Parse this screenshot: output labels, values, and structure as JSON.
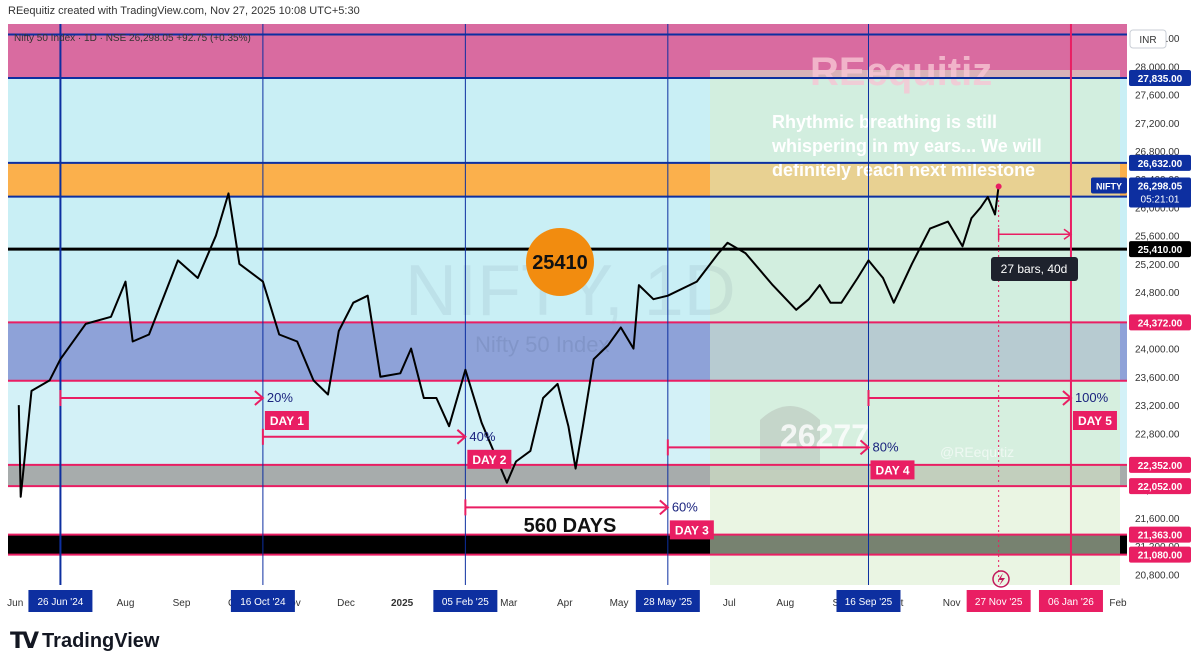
{
  "header": {
    "credit": "REequitiz created with TradingView.com, Nov 27, 2025 10:08 UTC+5:30"
  },
  "legend": {
    "text": "Nifty 50 Index · 1D · NSE  26,298.05  +92.75 (+0.35%)"
  },
  "currency": "INR",
  "watermark": {
    "symbol": "NIFTY, 1D",
    "name": "Nifty 50 Index",
    "brand": "REequitiz"
  },
  "overlay": {
    "quote_lines": [
      "Rhythmic breathing is still",
      "whispering in my ears... We will",
      "definitely reach next milestone"
    ],
    "badge": "26277"
  },
  "callout": {
    "label": "25410"
  },
  "measure": {
    "label": "27 bars, 40d"
  },
  "span_label": "560 DAYS",
  "branding": {
    "name": "TradingView"
  },
  "colors": {
    "pink_band": "#d96ba0",
    "light_cyan": "#c9eff5",
    "orange_band": "#fbb04c",
    "blue_band": "#8ea2d8",
    "gray_band": "#a7acac",
    "magenta": "#e91e63",
    "navy": "#0d2fa0",
    "callout_orange": "#f28c0f"
  },
  "chart_data": {
    "type": "line",
    "series": [
      {
        "name": "NIFTY",
        "x": [
          "2024-06-03",
          "2024-06-04",
          "2024-06-10",
          "2024-06-20",
          "2024-06-26",
          "2024-07-10",
          "2024-07-24",
          "2024-08-01",
          "2024-08-05",
          "2024-08-14",
          "2024-08-30",
          "2024-09-10",
          "2024-09-20",
          "2024-09-27",
          "2024-10-03",
          "2024-10-16",
          "2024-10-25",
          "2024-11-04",
          "2024-11-13",
          "2024-11-21",
          "2024-11-27",
          "2024-12-05",
          "2024-12-13",
          "2024-12-20",
          "2024-12-31",
          "2025-01-06",
          "2025-01-13",
          "2025-01-20",
          "2025-01-27",
          "2025-02-05",
          "2025-02-14",
          "2025-02-28",
          "2025-03-05",
          "2025-03-13",
          "2025-03-20",
          "2025-03-28",
          "2025-04-03",
          "2025-04-07",
          "2025-04-11",
          "2025-04-17",
          "2025-04-25",
          "2025-05-02",
          "2025-05-09",
          "2025-05-12",
          "2025-05-20",
          "2025-05-28",
          "2025-06-13",
          "2025-06-25",
          "2025-06-30",
          "2025-07-10",
          "2025-07-25",
          "2025-08-07",
          "2025-08-14",
          "2025-08-20",
          "2025-08-26",
          "2025-09-01",
          "2025-09-10",
          "2025-09-16",
          "2025-09-24",
          "2025-09-30",
          "2025-10-10",
          "2025-10-20",
          "2025-10-30",
          "2025-11-07",
          "2025-11-12",
          "2025-11-17",
          "2025-11-21",
          "2025-11-25",
          "2025-11-27"
        ],
        "y": [
          23200,
          21900,
          23400,
          23550,
          23850,
          24350,
          24450,
          24950,
          24100,
          24200,
          25250,
          25000,
          25600,
          26200,
          25200,
          24950,
          24200,
          24100,
          23550,
          23350,
          24250,
          24650,
          24750,
          23600,
          23650,
          24000,
          23300,
          23300,
          22900,
          23700,
          22950,
          22100,
          22400,
          22550,
          23300,
          23500,
          22900,
          22300,
          22900,
          23850,
          24050,
          24300,
          24000,
          24900,
          24700,
          24750,
          24950,
          25350,
          25500,
          25350,
          24900,
          24550,
          24700,
          24900,
          24650,
          24650,
          25000,
          25250,
          25000,
          24650,
          25200,
          25700,
          25800,
          25450,
          25850,
          26000,
          26150,
          25900,
          26298.05
        ]
      }
    ],
    "horizontal_levels": [
      28452,
      27835,
      26632,
      26154,
      25410,
      24372,
      23544,
      22352,
      22052,
      21363,
      21080
    ],
    "bands": [
      {
        "from": 27835,
        "to": 28452,
        "color": "pink"
      },
      {
        "from": 26154,
        "to": 26632,
        "color": "orange"
      },
      {
        "from": 23544,
        "to": 24372,
        "color": "blue"
      },
      {
        "from": 22052,
        "to": 22352,
        "color": "gray"
      },
      {
        "from": 21080,
        "to": 21363,
        "color": "black"
      }
    ],
    "milestones": [
      {
        "label": "DAY 1",
        "pct": "20%",
        "date": "16 Oct '24"
      },
      {
        "label": "DAY 2",
        "pct": "40%",
        "date": "05 Feb '25"
      },
      {
        "label": "DAY 3",
        "pct": "60%",
        "date": "28 May '25"
      },
      {
        "label": "DAY 4",
        "pct": "80%",
        "date": "16 Sep '25"
      },
      {
        "label": "DAY 5",
        "pct": "100%",
        "date": "06 Jan '26"
      }
    ],
    "date_markers": [
      "26 Jun '24",
      "16 Oct '24",
      "05 Feb '25",
      "28 May '25",
      "16 Sep '25",
      "27 Nov '25",
      "06 Jan '26"
    ],
    "x_ticks": [
      "Jun",
      "Aug",
      "Sep",
      "Oct",
      "Nov",
      "Dec",
      "2025",
      "Mar",
      "Apr",
      "May",
      "Jul",
      "Aug",
      "Sep",
      "Oct",
      "Nov",
      "Feb"
    ],
    "y_ticks": [
      "28,400.00",
      "28,000.00",
      "27,600.00",
      "27,200.00",
      "26,800.00",
      "26,400.00",
      "26,000.00",
      "25,600.00",
      "25,200.00",
      "24,800.00",
      "24,400.00",
      "24,000.00",
      "23,600.00",
      "23,200.00",
      "22,800.00",
      "22,400.00",
      "22,000.00",
      "21,600.00",
      "21,200.00",
      "20,800.00"
    ],
    "price_labels": [
      {
        "value": 27835,
        "text": "27,835.00",
        "color": "navy"
      },
      {
        "value": 26632,
        "text": "26,632.00",
        "color": "navy"
      },
      {
        "value": 26154,
        "text": "26,154.00",
        "color": "navy"
      },
      {
        "value": 25410,
        "text": "25,410.00",
        "color": "black"
      },
      {
        "value": 24372,
        "text": "24,372.00",
        "color": "magenta"
      },
      {
        "value": 22352,
        "text": "22,352.00",
        "color": "magenta"
      },
      {
        "value": 22052,
        "text": "22,052.00",
        "color": "magenta"
      },
      {
        "value": 21363,
        "text": "21,363.00",
        "color": "magenta"
      },
      {
        "value": 21080,
        "text": "21,080.00",
        "color": "magenta"
      }
    ],
    "last_price": {
      "symbol": "NIFTY",
      "value": "26,298.05",
      "countdown": "05:21:01"
    },
    "ylim": [
      20650,
      28600
    ],
    "xlim": [
      "2024-05-28",
      "2026-02-06"
    ],
    "grid": false
  }
}
